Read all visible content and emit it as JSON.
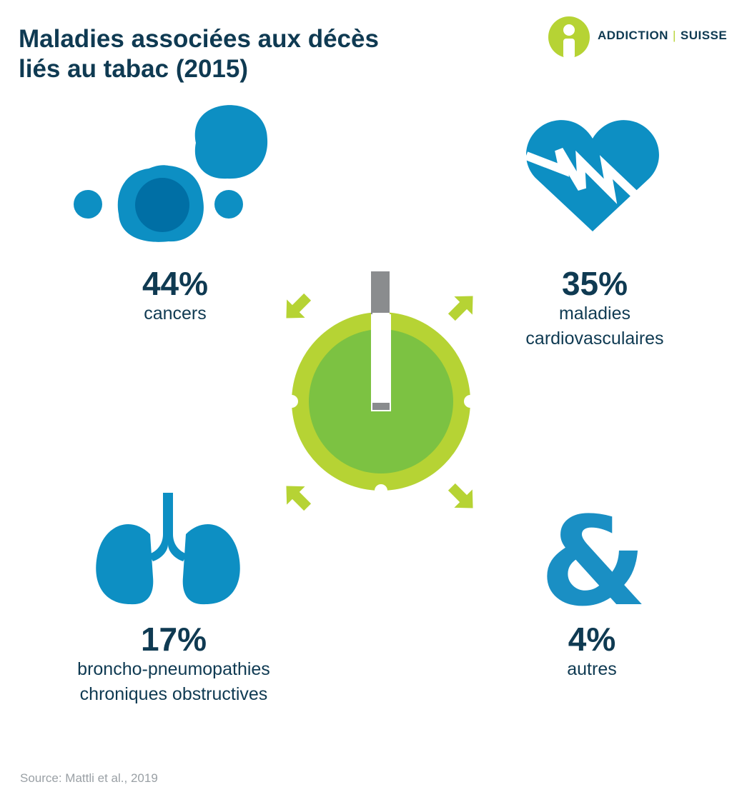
{
  "title": {
    "line1": "Maladies associées aux décès",
    "line2": "liés au tabac (2015)"
  },
  "logo": {
    "part1": "ADDICTION",
    "separator": "|",
    "part2": "SUISSE",
    "icon": "addiction-suisse-logo-icon"
  },
  "categories": [
    {
      "percent_label": "44%",
      "value": 44,
      "label_lines": [
        "cancers"
      ],
      "icon": "cancer-cells-icon"
    },
    {
      "percent_label": "35%",
      "value": 35,
      "label_lines": [
        "maladies",
        "cardiovasculaires"
      ],
      "icon": "heart-icon"
    },
    {
      "percent_label": "17%",
      "value": 17,
      "label_lines": [
        "broncho-pneumopathies",
        "chroniques obstructives"
      ],
      "icon": "lungs-icon"
    },
    {
      "percent_label": "4%",
      "value": 4,
      "label_lines": [
        "autres"
      ],
      "icon": "ampersand-icon"
    }
  ],
  "source": "Source: Mattli et al., 2019",
  "colors": {
    "navy": "#0f3a52",
    "blue": "#0d8fc3",
    "lime": "#b6d334",
    "green": "#7cc242",
    "grey": "#8a8c8e"
  }
}
